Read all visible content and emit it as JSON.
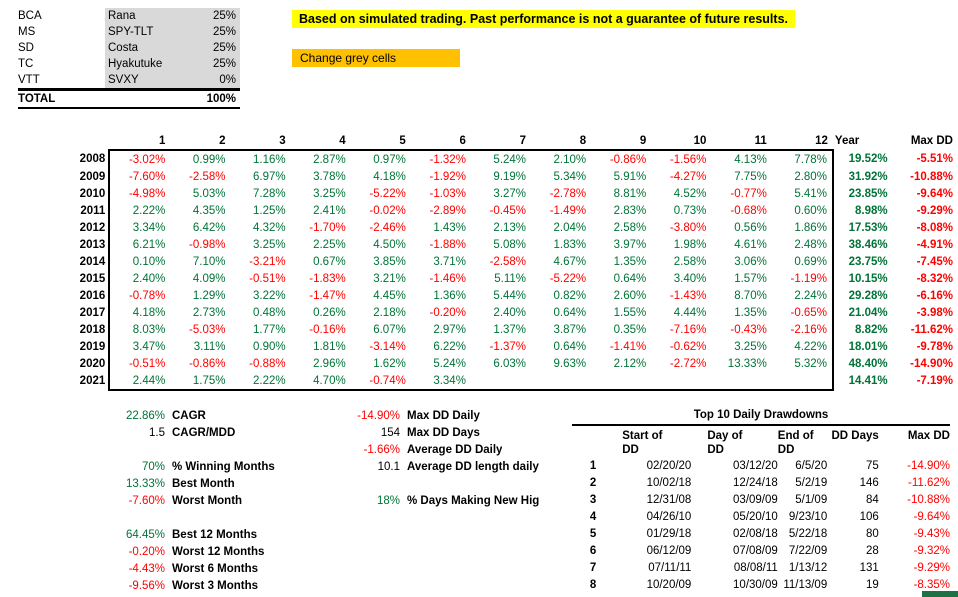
{
  "colors": {
    "positive": "#007337",
    "negative": "#FF0000",
    "grey_cell": "#D9D9D9",
    "banner_bg": "#FFFF00",
    "button_bg": "#FFC000",
    "accent_bar": "#1E7145"
  },
  "portfolio": {
    "rows": [
      {
        "code": "BCA",
        "name": "Rana",
        "weight": "25%"
      },
      {
        "code": "MS",
        "name": "SPY-TLT",
        "weight": "25%"
      },
      {
        "code": "SD",
        "name": "Costa",
        "weight": "25%"
      },
      {
        "code": "TC",
        "name": "Hyakutuke",
        "weight": "25%"
      },
      {
        "code": "VTT",
        "name": "SVXY",
        "weight": "0%"
      }
    ],
    "total_label": "TOTAL",
    "total_value": "100%"
  },
  "banner": {
    "text": "Based on simulated trading. Past performance is not a guarantee of future results."
  },
  "action_button": {
    "label": "Change grey cells"
  },
  "returns_table": {
    "month_headers": [
      "1",
      "2",
      "3",
      "4",
      "5",
      "6",
      "7",
      "8",
      "9",
      "10",
      "11",
      "12"
    ],
    "year_header": "Year",
    "maxdd_header": "Max DD",
    "rows": [
      {
        "year": "2008",
        "months": [
          "-3.02%",
          "0.99%",
          "1.16%",
          "2.87%",
          "0.97%",
          "-1.32%",
          "5.24%",
          "2.10%",
          "-0.86%",
          "-1.56%",
          "4.13%",
          "7.78%"
        ],
        "year_total": "19.52%",
        "max_dd": "-5.51%"
      },
      {
        "year": "2009",
        "months": [
          "-7.60%",
          "-2.58%",
          "6.97%",
          "3.78%",
          "4.18%",
          "-1.92%",
          "9.19%",
          "5.34%",
          "5.91%",
          "-4.27%",
          "7.75%",
          "2.80%"
        ],
        "year_total": "31.92%",
        "max_dd": "-10.88%"
      },
      {
        "year": "2010",
        "months": [
          "-4.98%",
          "5.03%",
          "7.28%",
          "3.25%",
          "-5.22%",
          "-1.03%",
          "3.27%",
          "-2.78%",
          "8.81%",
          "4.52%",
          "-0.77%",
          "5.41%"
        ],
        "year_total": "23.85%",
        "max_dd": "-9.64%"
      },
      {
        "year": "2011",
        "months": [
          "2.22%",
          "4.35%",
          "1.25%",
          "2.41%",
          "-0.02%",
          "-2.89%",
          "-0.45%",
          "-1.49%",
          "2.83%",
          "0.73%",
          "-0.68%",
          "0.60%"
        ],
        "year_total": "8.98%",
        "max_dd": "-9.29%"
      },
      {
        "year": "2012",
        "months": [
          "3.34%",
          "6.42%",
          "4.32%",
          "-1.70%",
          "-2.46%",
          "1.43%",
          "2.13%",
          "2.04%",
          "2.58%",
          "-3.80%",
          "0.56%",
          "1.86%"
        ],
        "year_total": "17.53%",
        "max_dd": "-8.08%"
      },
      {
        "year": "2013",
        "months": [
          "6.21%",
          "-0.98%",
          "3.25%",
          "2.25%",
          "4.50%",
          "-1.88%",
          "5.08%",
          "1.83%",
          "3.97%",
          "1.98%",
          "4.61%",
          "2.48%"
        ],
        "year_total": "38.46%",
        "max_dd": "-4.91%"
      },
      {
        "year": "2014",
        "months": [
          "0.10%",
          "7.10%",
          "-3.21%",
          "0.67%",
          "3.85%",
          "3.71%",
          "-2.58%",
          "4.67%",
          "1.35%",
          "2.58%",
          "3.06%",
          "0.69%"
        ],
        "year_total": "23.75%",
        "max_dd": "-7.45%"
      },
      {
        "year": "2015",
        "months": [
          "2.40%",
          "4.09%",
          "-0.51%",
          "-1.83%",
          "3.21%",
          "-1.46%",
          "5.11%",
          "-5.22%",
          "0.64%",
          "3.40%",
          "1.57%",
          "-1.19%"
        ],
        "year_total": "10.15%",
        "max_dd": "-8.32%"
      },
      {
        "year": "2016",
        "months": [
          "-0.78%",
          "1.29%",
          "3.22%",
          "-1.47%",
          "4.45%",
          "1.36%",
          "5.44%",
          "0.82%",
          "2.60%",
          "-1.43%",
          "8.70%",
          "2.24%"
        ],
        "year_total": "29.28%",
        "max_dd": "-6.16%"
      },
      {
        "year": "2017",
        "months": [
          "4.18%",
          "2.73%",
          "0.48%",
          "0.26%",
          "2.18%",
          "-0.20%",
          "2.40%",
          "0.64%",
          "1.55%",
          "4.44%",
          "1.35%",
          "-0.65%"
        ],
        "year_total": "21.04%",
        "max_dd": "-3.98%"
      },
      {
        "year": "2018",
        "months": [
          "8.03%",
          "-5.03%",
          "1.77%",
          "-0.16%",
          "6.07%",
          "2.97%",
          "1.37%",
          "3.87%",
          "0.35%",
          "-7.16%",
          "-0.43%",
          "-2.16%"
        ],
        "year_total": "8.82%",
        "max_dd": "-11.62%"
      },
      {
        "year": "2019",
        "months": [
          "3.47%",
          "3.11%",
          "0.90%",
          "1.81%",
          "-3.14%",
          "6.22%",
          "-1.37%",
          "0.64%",
          "-1.41%",
          "-0.62%",
          "3.25%",
          "4.22%"
        ],
        "year_total": "18.01%",
        "max_dd": "-9.78%"
      },
      {
        "year": "2020",
        "months": [
          "-0.51%",
          "-0.86%",
          "-0.88%",
          "2.96%",
          "1.62%",
          "5.24%",
          "6.03%",
          "9.63%",
          "2.12%",
          "-2.72%",
          "13.33%",
          "5.32%"
        ],
        "year_total": "48.40%",
        "max_dd": "-14.90%"
      },
      {
        "year": "2021",
        "months": [
          "2.44%",
          "1.75%",
          "2.22%",
          "4.70%",
          "-0.74%",
          "3.34%",
          "",
          "",
          "",
          "",
          "",
          ""
        ],
        "year_total": "14.41%",
        "max_dd": "-7.19%"
      }
    ]
  },
  "summary_left": [
    {
      "value": "22.86%",
      "label": "CAGR",
      "color": "green"
    },
    {
      "value": "1.5",
      "label": "CAGR/MDD",
      "color": "black"
    },
    {
      "spacer": true
    },
    {
      "value": "70%",
      "label": "% Winning Months",
      "color": "green"
    },
    {
      "value": "13.33%",
      "label": "Best Month",
      "color": "green"
    },
    {
      "value": "-7.60%",
      "label": "Worst Month",
      "color": "red"
    },
    {
      "spacer": true
    },
    {
      "value": "64.45%",
      "label": "Best 12 Months",
      "color": "green"
    },
    {
      "value": "-0.20%",
      "label": "Worst 12 Months",
      "color": "red"
    },
    {
      "value": "-4.43%",
      "label": "Worst 6 Months",
      "color": "red"
    },
    {
      "value": "-9.56%",
      "label": "Worst 3 Months",
      "color": "red"
    }
  ],
  "summary_mid": [
    {
      "value": "-14.90%",
      "label": "Max DD Daily",
      "color": "red"
    },
    {
      "value": "154",
      "label": "Max DD Days",
      "color": "black"
    },
    {
      "value": "-1.66%",
      "label": "Average DD Daily",
      "color": "red"
    },
    {
      "value": "10.1",
      "label": "Average DD length daily",
      "color": "black"
    },
    {
      "spacer": true
    },
    {
      "value": "18%",
      "label": "% Days Making New Hig",
      "color": "green"
    }
  ],
  "drawdowns": {
    "title": "Top 10 Daily Drawdowns",
    "headers": {
      "start": [
        "Start of",
        "DD"
      ],
      "day": [
        "Day of",
        "DD"
      ],
      "end": [
        "End of",
        "DD"
      ],
      "days": "DD Days",
      "maxdd": "Max DD"
    },
    "rows": [
      {
        "num": "1",
        "start": "02/20/20",
        "day": "03/12/20",
        "end": "6/5/20",
        "days": "75",
        "max_dd": "-14.90%"
      },
      {
        "num": "2",
        "start": "10/02/18",
        "day": "12/24/18",
        "end": "5/2/19",
        "days": "146",
        "max_dd": "-11.62%"
      },
      {
        "num": "3",
        "start": "12/31/08",
        "day": "03/09/09",
        "end": "5/1/09",
        "days": "84",
        "max_dd": "-10.88%"
      },
      {
        "num": "4",
        "start": "04/26/10",
        "day": "05/20/10",
        "end": "9/23/10",
        "days": "106",
        "max_dd": "-9.64%"
      },
      {
        "num": "5",
        "start": "01/29/18",
        "day": "02/08/18",
        "end": "5/22/18",
        "days": "80",
        "max_dd": "-9.43%"
      },
      {
        "num": "6",
        "start": "06/12/09",
        "day": "07/08/09",
        "end": "7/22/09",
        "days": "28",
        "max_dd": "-9.32%"
      },
      {
        "num": "7",
        "start": "07/11/11",
        "day": "08/08/11",
        "end": "1/13/12",
        "days": "131",
        "max_dd": "-9.29%"
      },
      {
        "num": "8",
        "start": "10/20/09",
        "day": "10/30/09",
        "end": "11/13/09",
        "days": "19",
        "max_dd": "-8.35%"
      }
    ]
  }
}
